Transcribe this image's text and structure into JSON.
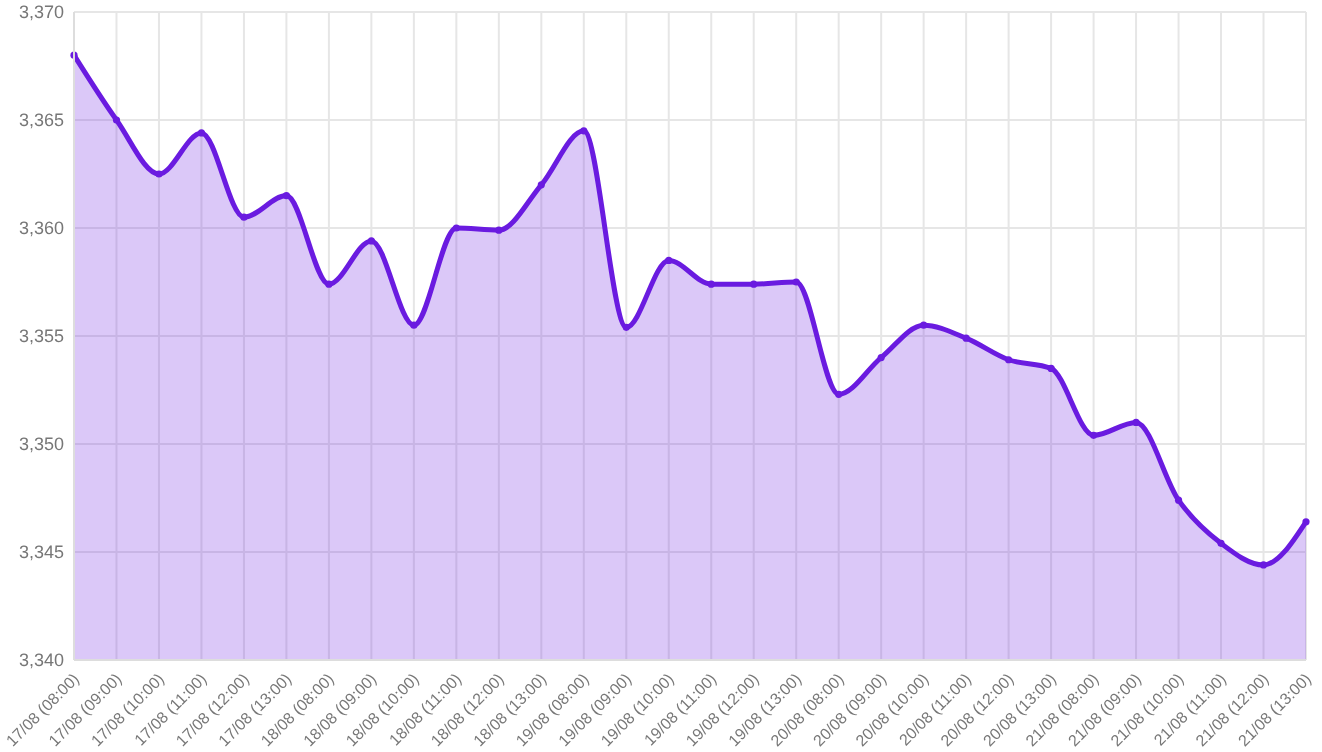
{
  "chart_data": {
    "type": "area",
    "categories": [
      "17/08 (08:00)",
      "17/08 (09:00)",
      "17/08 (10:00)",
      "17/08 (11:00)",
      "17/08 (12:00)",
      "17/08 (13:00)",
      "18/08 (08:00)",
      "18/08 (09:00)",
      "18/08 (10:00)",
      "18/08 (11:00)",
      "18/08 (12:00)",
      "18/08 (13:00)",
      "19/08 (08:00)",
      "19/08 (09:00)",
      "19/08 (10:00)",
      "19/08 (11:00)",
      "19/08 (12:00)",
      "19/08 (13:00)",
      "20/08 (08:00)",
      "20/08 (09:00)",
      "20/08 (10:00)",
      "20/08 (11:00)",
      "20/08 (12:00)",
      "20/08 (13:00)",
      "21/08 (08:00)",
      "21/08 (09:00)",
      "21/08 (10:00)",
      "21/08 (11:00)",
      "21/08 (12:00)",
      "21/08 (13:00)"
    ],
    "series": [
      {
        "color": "#6a1be0",
        "values": [
          3368.0,
          3365.0,
          3362.5,
          3364.4,
          3360.5,
          3361.5,
          3357.4,
          3359.4,
          3355.5,
          3360.0,
          3359.9,
          3362.0,
          3364.5,
          3355.4,
          3358.5,
          3357.4,
          3357.4,
          3357.5,
          3352.3,
          3354.0,
          3355.5,
          3354.9,
          3353.9,
          3353.5,
          3350.4,
          3351.0,
          3347.4,
          3345.4,
          3344.4,
          3346.4
        ]
      }
    ],
    "ylim": [
      3340,
      3370
    ],
    "yticks": [
      {
        "value": 3340,
        "label": "3,340"
      },
      {
        "value": 3345,
        "label": "3,345"
      },
      {
        "value": 3350,
        "label": "3,350"
      },
      {
        "value": 3355,
        "label": "3,355"
      },
      {
        "value": 3360,
        "label": "3,360"
      },
      {
        "value": 3365,
        "label": "3,365"
      },
      {
        "value": 3370,
        "label": "3,370"
      }
    ],
    "grid": true,
    "marker": "circle",
    "line_style": "solid"
  }
}
